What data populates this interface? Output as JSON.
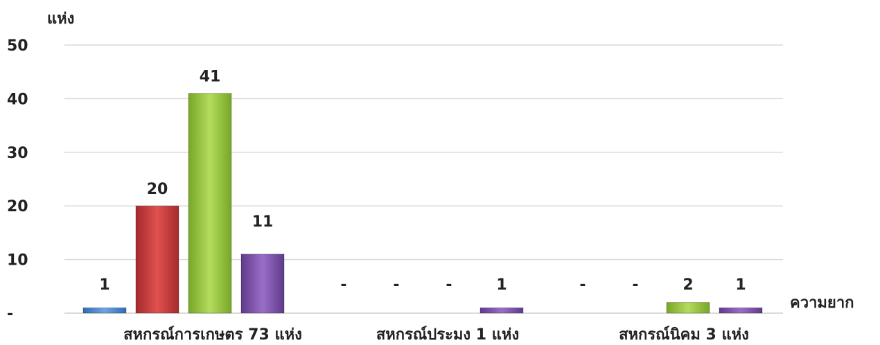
{
  "chart_data": {
    "type": "bar",
    "ylabel": "แห่ง",
    "xlabel": "ความยาก",
    "ylim": [
      0,
      50
    ],
    "yticks": [
      {
        "value": 0,
        "label": "-"
      },
      {
        "value": 10,
        "label": "10"
      },
      {
        "value": 20,
        "label": "20"
      },
      {
        "value": 30,
        "label": "30"
      },
      {
        "value": 40,
        "label": "40"
      },
      {
        "value": 50,
        "label": "50"
      }
    ],
    "grid": true,
    "legend": "none",
    "categories": [
      "สหกรณ์การเกษตร 73 แห่ง",
      "สหกรณ์ประมง 1 แห่ง",
      "สหกรณ์นิคม 3 แห่ง"
    ],
    "series": [
      {
        "color": "#4a86cf",
        "values": [
          1,
          0,
          0
        ],
        "labels": [
          "1",
          "-",
          "-"
        ]
      },
      {
        "color": "#c0393b",
        "values": [
          20,
          0,
          0
        ],
        "labels": [
          "20",
          "-",
          "-"
        ]
      },
      {
        "color": "#8fbf3a",
        "values": [
          41,
          0,
          2
        ],
        "labels": [
          "41",
          "-",
          "2"
        ]
      },
      {
        "color": "#7a4fa6",
        "values": [
          11,
          1,
          1
        ],
        "labels": [
          "11",
          "1",
          "1"
        ]
      }
    ]
  }
}
